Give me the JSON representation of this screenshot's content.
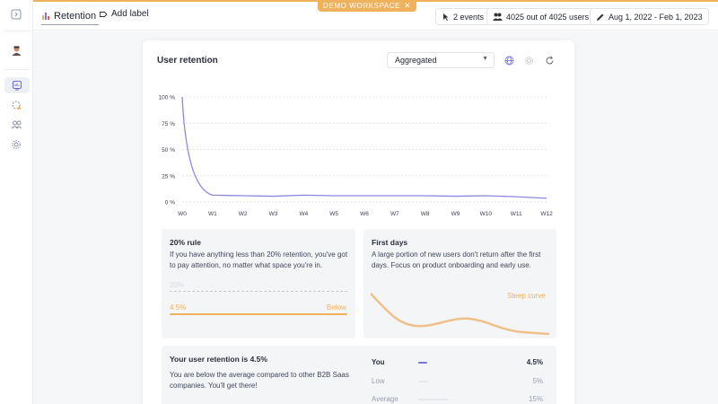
{
  "banner": {
    "label": "DEMO WORKSPACE",
    "close_icon": "close-icon"
  },
  "header": {
    "tab_label": "Retention",
    "add_label": "Add label",
    "events": "2 events",
    "users": "4025 out of 4025 users",
    "date_range": "Aug 1, 2022 - Feb 1, 2023"
  },
  "card": {
    "title": "User retention",
    "select_value": "Aggregated"
  },
  "chart_data": {
    "type": "line",
    "x": [
      "W0",
      "W1",
      "W2",
      "W3",
      "W4",
      "W5",
      "W6",
      "W7",
      "W8",
      "W9",
      "W10",
      "W11",
      "W12"
    ],
    "series": [
      {
        "values": [
          100,
          6.5,
          6,
          5.5,
          6.5,
          6,
          6,
          6,
          6,
          5.5,
          6,
          5,
          3.5
        ]
      }
    ],
    "yticks": [
      "100 %",
      "75 %",
      "50 %",
      "25 %",
      "0 %"
    ],
    "ylim": [
      0,
      100
    ],
    "grid": true,
    "color": "#8b86e0"
  },
  "rule_panel": {
    "title": "20% rule",
    "text": "If you have anything less than 20% retention, you've got to pay attention, no matter what space you're in.",
    "threshold_label": "20%",
    "value_label": "4.5%",
    "status": "Below"
  },
  "first_days_panel": {
    "title": "First days",
    "text": "A large portion of new users don't return after the first days. Focus on product onboarding and early use.",
    "curve_label": "Steep curve"
  },
  "summary_panel": {
    "title": "Your user retention is 4.5%",
    "text": "You are below the average compared to other B2B Saas companies. You'll get there!",
    "rows": [
      {
        "label": "You",
        "value": "4.5%",
        "fraction": 0.045,
        "color": "#7a77d8"
      },
      {
        "label": "Low",
        "value": "5%",
        "fraction": 0.05,
        "color": "#e6e8ee"
      },
      {
        "label": "Average",
        "value": "15%",
        "fraction": 0.15,
        "color": "#e6e8ee"
      }
    ]
  },
  "colors": {
    "accent": "#f0b15d",
    "line": "#8b86e0"
  }
}
